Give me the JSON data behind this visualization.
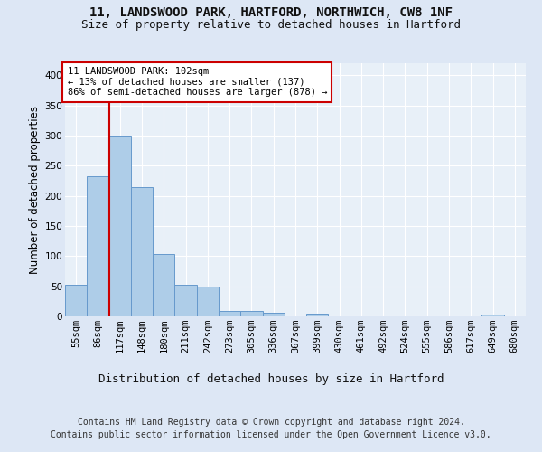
{
  "title1": "11, LANDSWOOD PARK, HARTFORD, NORTHWICH, CW8 1NF",
  "title2": "Size of property relative to detached houses in Hartford",
  "xlabel": "Distribution of detached houses by size in Hartford",
  "ylabel": "Number of detached properties",
  "bar_labels": [
    "55sqm",
    "86sqm",
    "117sqm",
    "148sqm",
    "180sqm",
    "211sqm",
    "242sqm",
    "273sqm",
    "305sqm",
    "336sqm",
    "367sqm",
    "399sqm",
    "430sqm",
    "461sqm",
    "492sqm",
    "524sqm",
    "555sqm",
    "586sqm",
    "617sqm",
    "649sqm",
    "680sqm"
  ],
  "bar_values": [
    53,
    232,
    300,
    215,
    103,
    52,
    49,
    9,
    9,
    6,
    0,
    5,
    0,
    0,
    0,
    0,
    0,
    0,
    0,
    3,
    0
  ],
  "bar_color": "#aecde8",
  "bar_edge_color": "#6699cc",
  "vline_x_idx": 2,
  "vline_color": "#cc0000",
  "annotation_text": "11 LANDSWOOD PARK: 102sqm\n← 13% of detached houses are smaller (137)\n86% of semi-detached houses are larger (878) →",
  "annotation_box_color": "#ffffff",
  "annotation_box_edge_color": "#cc0000",
  "ylim": [
    0,
    420
  ],
  "yticks": [
    0,
    50,
    100,
    150,
    200,
    250,
    300,
    350,
    400
  ],
  "background_color": "#dde7f5",
  "plot_bg_color": "#e8f0f8",
  "grid_color": "#ffffff",
  "footer_line1": "Contains HM Land Registry data © Crown copyright and database right 2024.",
  "footer_line2": "Contains public sector information licensed under the Open Government Licence v3.0.",
  "title1_fontsize": 10,
  "title2_fontsize": 9,
  "xlabel_fontsize": 9,
  "ylabel_fontsize": 8.5,
  "tick_fontsize": 7.5,
  "annotation_fontsize": 7.5,
  "footer_fontsize": 7
}
